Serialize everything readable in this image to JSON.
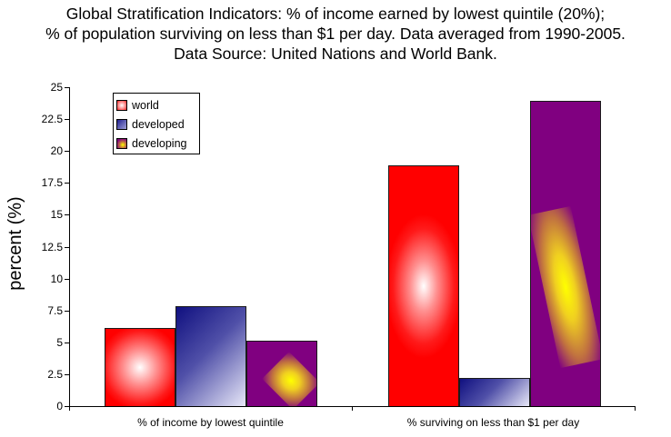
{
  "title": {
    "line1": "Global Stratification Indicators: % of income earned by lowest quintile (20%);",
    "line2": "% of population surviving on less than $1 per day. Data averaged from 1990-2005.",
    "line3": "Data Source: United Nations and World Bank."
  },
  "axes": {
    "ylabel": "percent (%)",
    "yticks": [
      "25",
      "22.5",
      "20",
      "17.5",
      "15",
      "12.5",
      "10",
      "7.5",
      "5",
      "2.5",
      "0"
    ],
    "xlabels": [
      "% of income by lowest quintile",
      "% surviving on less than $1 per day"
    ]
  },
  "legend": {
    "items": [
      {
        "label": "world",
        "color": "#ff0000"
      },
      {
        "label": "developed",
        "color": "#202090"
      },
      {
        "label": "developing",
        "color": "#800080"
      }
    ]
  },
  "chart_data": {
    "type": "bar",
    "title": "Global Stratification Indicators: % of income earned by lowest quintile (20%); % of population surviving on less than $1 per day. Data averaged from 1990-2005. Data Source: United Nations and World Bank.",
    "categories": [
      "% of income by lowest quintile",
      "% surviving on less than $1 per day"
    ],
    "series": [
      {
        "name": "world",
        "values": [
          6.1,
          18.9
        ],
        "color": "#ff0000"
      },
      {
        "name": "developed",
        "values": [
          7.8,
          2.2
        ],
        "color": "#202090"
      },
      {
        "name": "developing",
        "values": [
          5.1,
          23.9
        ],
        "color": "#800080"
      }
    ],
    "xlabel": "",
    "ylabel": "percent (%)",
    "ylim": [
      0,
      25
    ],
    "ytick_step": 2.5,
    "grid": false,
    "legend_position": "upper-left inside"
  }
}
